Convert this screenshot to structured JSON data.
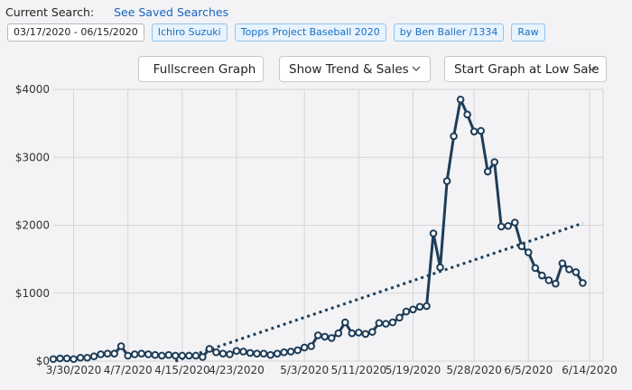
{
  "header": {
    "current_search_label": "Current Search:",
    "saved_link": "See Saved Searches"
  },
  "tags": [
    {
      "text": "03/17/2020 - 06/15/2020",
      "kind": "date"
    },
    {
      "text": "Ichiro Suzuki",
      "kind": "filter"
    },
    {
      "text": "Topps Project Baseball 2020",
      "kind": "filter"
    },
    {
      "text": "by Ben Baller /1334",
      "kind": "filter"
    },
    {
      "text": "Raw",
      "kind": "filter"
    }
  ],
  "controls": {
    "fullscreen_label": "Fullscreen Graph",
    "trend_select": "Show Trend & Sales",
    "start_select": "Start Graph at Low Sale"
  },
  "colors": {
    "series": "#1e3d58",
    "tag_border": "#8ec4f0",
    "tag_bg": "#e7f3fd",
    "tag_text": "#1b6fc2",
    "link": "#1565c0"
  },
  "chart_data": {
    "type": "line",
    "ylim": [
      0,
      4000
    ],
    "y_ticks": [
      0,
      1000,
      2000,
      3000,
      4000
    ],
    "y_tick_labels": [
      "$0",
      "$1000",
      "$2000",
      "$3000",
      "$4000"
    ],
    "x_range": [
      "2020-03-27",
      "2020-06-16"
    ],
    "x_ticks": [
      "2020-03-30",
      "2020-04-07",
      "2020-04-15",
      "2020-04-23",
      "2020-05-03",
      "2020-05-11",
      "2020-05-19",
      "2020-05-28",
      "2020-06-05",
      "2020-06-14"
    ],
    "x_tick_labels": [
      "3/30/2020",
      "4/7/2020",
      "4/15/2020",
      "4/23/2020",
      "5/3/2020",
      "5/11/2020",
      "5/19/2020",
      "5/28/2020",
      "6/5/2020",
      "6/14/2020"
    ],
    "grid": true,
    "series": [
      {
        "kind": "sales",
        "points": [
          [
            "2020-03-27",
            30
          ],
          [
            "2020-03-28",
            40
          ],
          [
            "2020-03-29",
            40
          ],
          [
            "2020-03-30",
            30
          ],
          [
            "2020-03-31",
            50
          ],
          [
            "2020-04-01",
            50
          ],
          [
            "2020-04-02",
            70
          ],
          [
            "2020-04-03",
            100
          ],
          [
            "2020-04-04",
            110
          ],
          [
            "2020-04-05",
            110
          ],
          [
            "2020-04-06",
            220
          ],
          [
            "2020-04-07",
            80
          ],
          [
            "2020-04-08",
            100
          ],
          [
            "2020-04-09",
            110
          ],
          [
            "2020-04-10",
            100
          ],
          [
            "2020-04-11",
            90
          ],
          [
            "2020-04-12",
            80
          ],
          [
            "2020-04-13",
            90
          ],
          [
            "2020-04-14",
            80
          ],
          [
            "2020-04-15",
            80
          ],
          [
            "2020-04-16",
            80
          ],
          [
            "2020-04-17",
            80
          ],
          [
            "2020-04-18",
            60
          ],
          [
            "2020-04-19",
            180
          ],
          [
            "2020-04-20",
            130
          ],
          [
            "2020-04-21",
            110
          ],
          [
            "2020-04-22",
            100
          ],
          [
            "2020-04-23",
            150
          ],
          [
            "2020-04-24",
            140
          ],
          [
            "2020-04-25",
            120
          ],
          [
            "2020-04-26",
            110
          ],
          [
            "2020-04-27",
            110
          ],
          [
            "2020-04-28",
            90
          ],
          [
            "2020-04-29",
            110
          ],
          [
            "2020-04-30",
            130
          ],
          [
            "2020-05-01",
            140
          ],
          [
            "2020-05-02",
            160
          ],
          [
            "2020-05-03",
            200
          ],
          [
            "2020-05-04",
            220
          ],
          [
            "2020-05-05",
            380
          ],
          [
            "2020-05-06",
            360
          ],
          [
            "2020-05-07",
            340
          ],
          [
            "2020-05-08",
            410
          ],
          [
            "2020-05-09",
            570
          ],
          [
            "2020-05-10",
            410
          ],
          [
            "2020-05-11",
            420
          ],
          [
            "2020-05-12",
            400
          ],
          [
            "2020-05-13",
            430
          ],
          [
            "2020-05-14",
            560
          ],
          [
            "2020-05-15",
            550
          ],
          [
            "2020-05-16",
            570
          ],
          [
            "2020-05-17",
            640
          ],
          [
            "2020-05-18",
            730
          ],
          [
            "2020-05-19",
            760
          ],
          [
            "2020-05-20",
            800
          ],
          [
            "2020-05-21",
            810
          ],
          [
            "2020-05-22",
            1880
          ],
          [
            "2020-05-23",
            1380
          ],
          [
            "2020-05-24",
            2650
          ],
          [
            "2020-05-25",
            3310
          ],
          [
            "2020-05-26",
            3850
          ],
          [
            "2020-05-27",
            3630
          ],
          [
            "2020-05-28",
            3380
          ],
          [
            "2020-05-29",
            3390
          ],
          [
            "2020-05-30",
            2790
          ],
          [
            "2020-05-31",
            2930
          ],
          [
            "2020-06-01",
            1980
          ],
          [
            "2020-06-02",
            1990
          ],
          [
            "2020-06-03",
            2040
          ],
          [
            "2020-06-04",
            1690
          ],
          [
            "2020-06-05",
            1600
          ],
          [
            "2020-06-06",
            1370
          ],
          [
            "2020-06-07",
            1260
          ],
          [
            "2020-06-08",
            1190
          ],
          [
            "2020-06-09",
            1140
          ],
          [
            "2020-06-10",
            1440
          ],
          [
            "2020-06-11",
            1350
          ],
          [
            "2020-06-12",
            1310
          ],
          [
            "2020-06-13",
            1150
          ]
        ]
      },
      {
        "kind": "trend",
        "points": [
          [
            "2020-04-14",
            0
          ],
          [
            "2020-06-13",
            2030
          ]
        ]
      }
    ]
  }
}
